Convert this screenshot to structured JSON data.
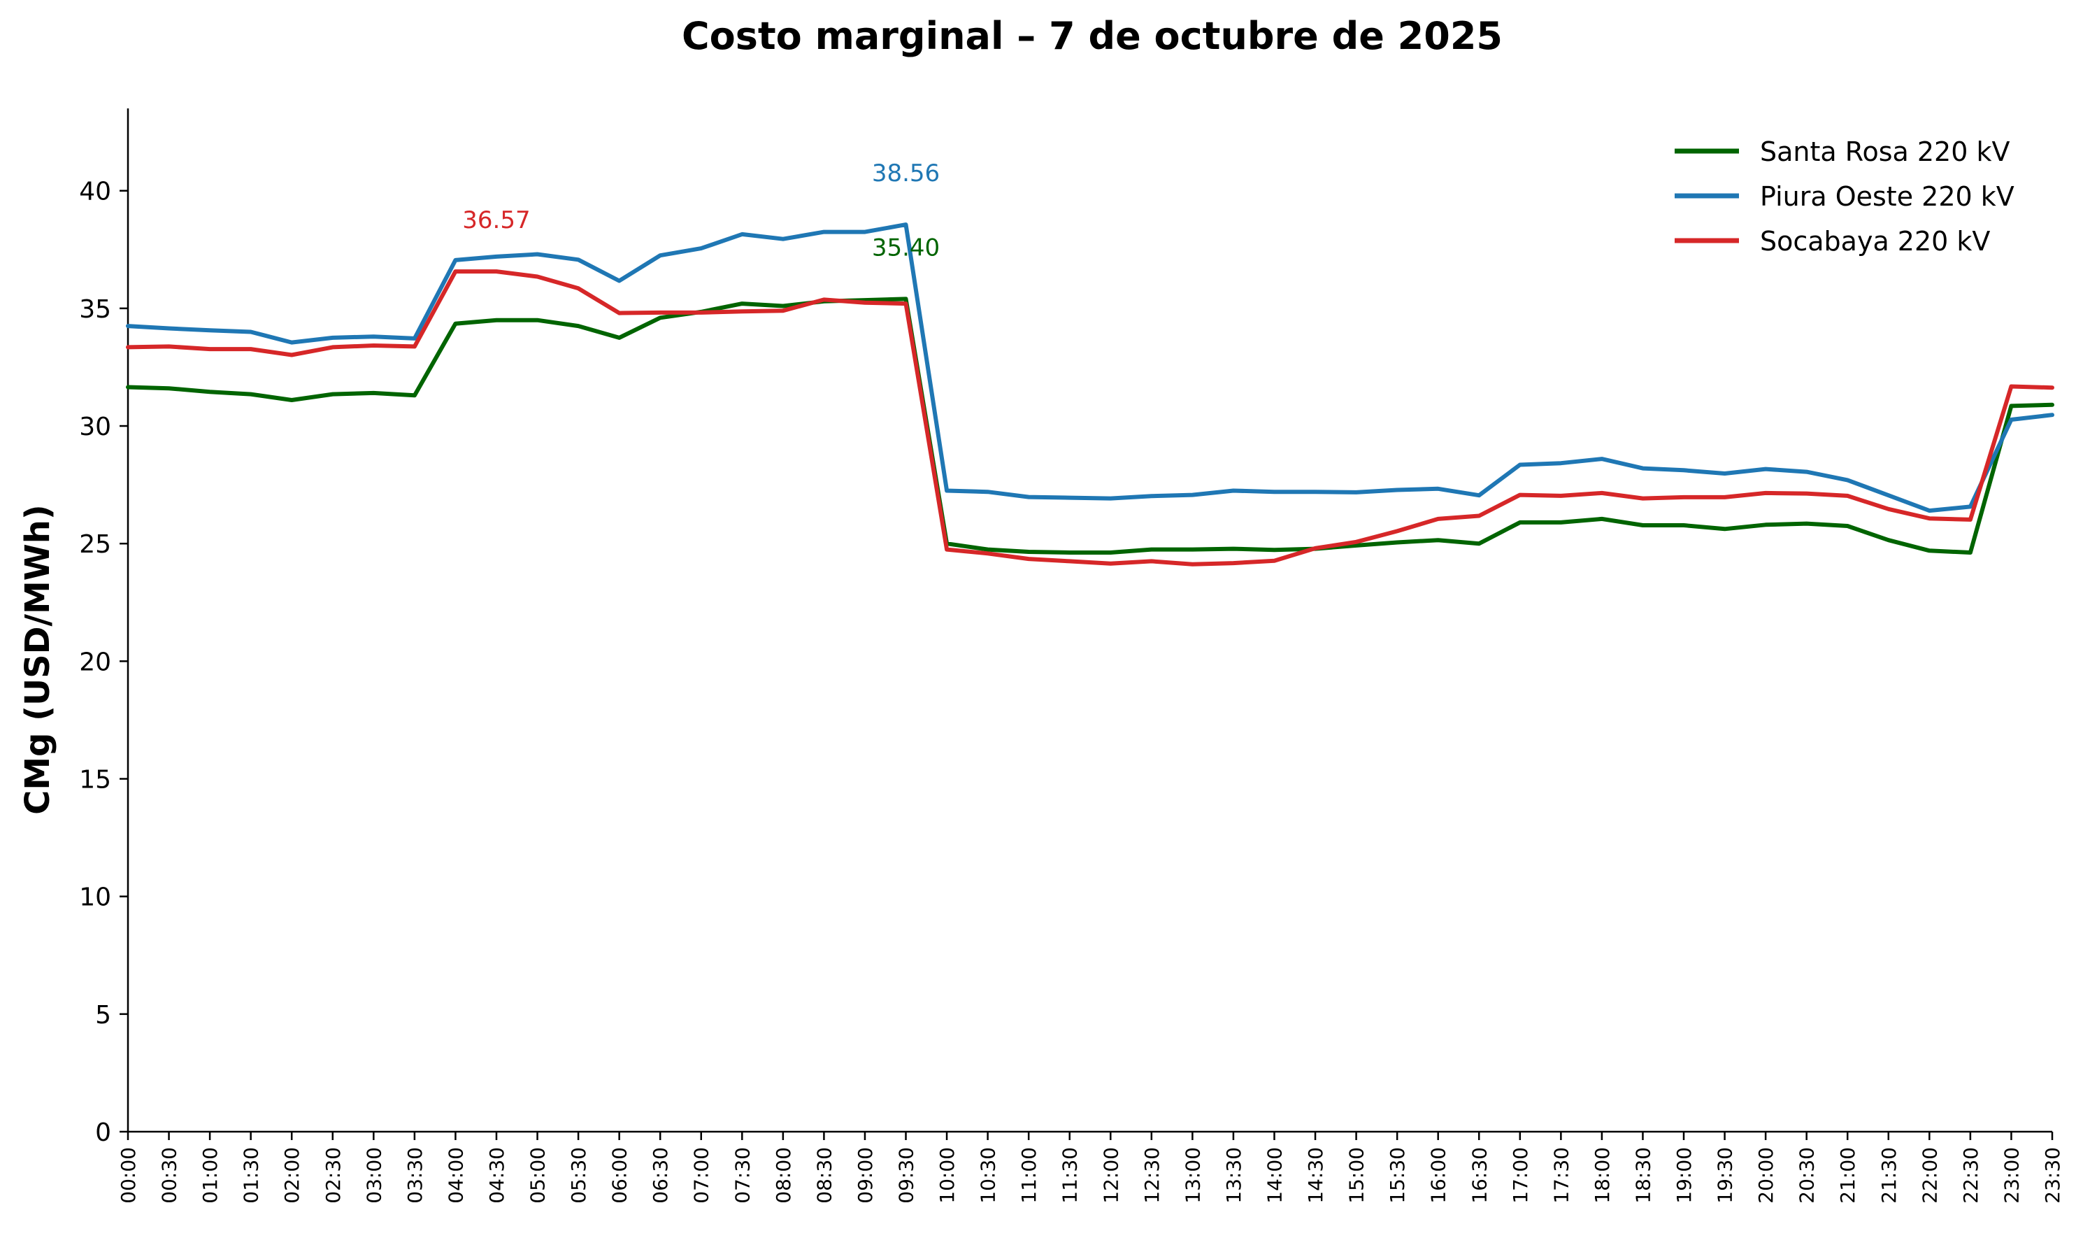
{
  "chart_data": {
    "type": "line",
    "title": "Costo marginal – 7 de octubre de 2025",
    "xlabel": "",
    "ylabel": "CMg (USD/MWh)",
    "ylim": [
      0,
      43.5
    ],
    "yticks": [
      0,
      5,
      10,
      15,
      20,
      25,
      30,
      35,
      40
    ],
    "x": [
      "00:00",
      "00:30",
      "01:00",
      "01:30",
      "02:00",
      "02:30",
      "03:00",
      "03:30",
      "04:00",
      "04:30",
      "05:00",
      "05:30",
      "06:00",
      "06:30",
      "07:00",
      "07:30",
      "08:00",
      "08:30",
      "09:00",
      "09:30",
      "10:00",
      "10:30",
      "11:00",
      "11:30",
      "12:00",
      "12:30",
      "13:00",
      "13:30",
      "14:00",
      "14:30",
      "15:00",
      "15:30",
      "16:00",
      "16:30",
      "17:00",
      "17:30",
      "18:00",
      "18:30",
      "19:00",
      "19:30",
      "20:00",
      "20:30",
      "21:00",
      "21:30",
      "22:00",
      "22:30",
      "23:00",
      "23:30"
    ],
    "legend_position": "top-right",
    "grid": false,
    "series": [
      {
        "name": "Santa Rosa 220 kV",
        "color": "#006400",
        "values": [
          31.65,
          31.6,
          31.45,
          31.35,
          31.1,
          31.35,
          31.4,
          31.3,
          34.35,
          34.5,
          34.5,
          34.25,
          33.75,
          34.6,
          34.85,
          35.2,
          35.1,
          35.3,
          35.35,
          35.4,
          25.0,
          24.75,
          24.65,
          24.62,
          24.62,
          24.75,
          24.75,
          24.78,
          24.73,
          24.78,
          24.92,
          25.05,
          25.15,
          25.0,
          25.9,
          25.9,
          26.05,
          25.78,
          25.78,
          25.62,
          25.8,
          25.85,
          25.75,
          25.15,
          24.7,
          24.62,
          30.85,
          30.9
        ]
      },
      {
        "name": "Piura Oeste 220 kV",
        "color": "#1f77b4",
        "values": [
          34.25,
          34.15,
          34.07,
          34.0,
          33.55,
          33.75,
          33.8,
          33.72,
          37.05,
          37.2,
          37.3,
          37.07,
          36.17,
          37.25,
          37.55,
          38.15,
          37.95,
          38.25,
          38.25,
          38.56,
          27.25,
          27.2,
          26.98,
          26.95,
          26.92,
          27.02,
          27.07,
          27.25,
          27.2,
          27.2,
          27.18,
          27.28,
          27.33,
          27.05,
          28.35,
          28.42,
          28.6,
          28.2,
          28.12,
          27.98,
          28.17,
          28.05,
          27.7,
          27.05,
          26.4,
          26.57,
          30.27,
          30.47
        ]
      },
      {
        "name": "Socabaya 220 kV",
        "color": "#d62728",
        "values": [
          33.35,
          33.38,
          33.27,
          33.27,
          33.02,
          33.35,
          33.42,
          33.38,
          36.57,
          36.57,
          36.35,
          35.85,
          34.8,
          34.82,
          34.82,
          34.87,
          34.9,
          35.37,
          35.24,
          35.2,
          24.75,
          24.58,
          24.35,
          24.25,
          24.15,
          24.25,
          24.12,
          24.17,
          24.27,
          24.8,
          25.07,
          25.53,
          26.05,
          26.18,
          27.07,
          27.03,
          27.15,
          26.92,
          26.97,
          26.97,
          27.15,
          27.13,
          27.03,
          26.47,
          26.07,
          26.02,
          31.68,
          31.63
        ]
      }
    ],
    "annotations": [
      {
        "text": "36.57",
        "x": "04:30",
        "y": 36.57,
        "color": "#d62728"
      },
      {
        "text": "38.56",
        "x": "09:30",
        "y": 38.56,
        "color": "#1f77b4"
      },
      {
        "text": "35.40",
        "x": "09:30",
        "y": 35.4,
        "color": "#006400"
      }
    ]
  }
}
